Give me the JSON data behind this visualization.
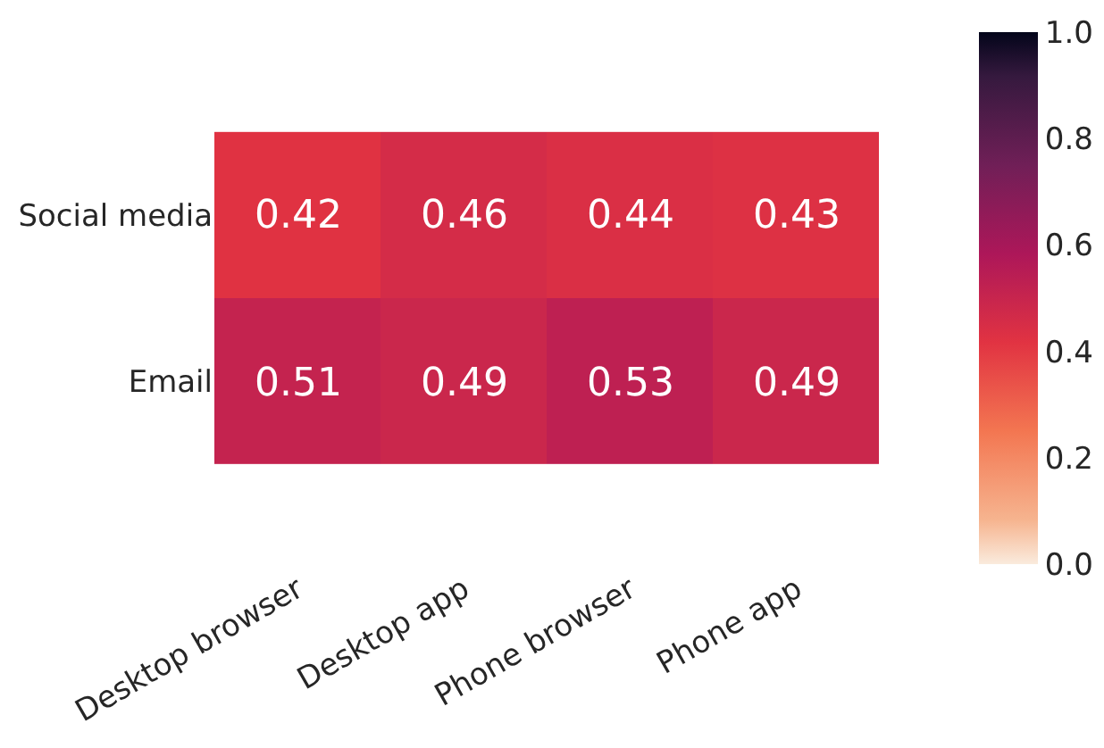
{
  "chart_data": {
    "type": "heatmap",
    "categories": [
      "Desktop browser",
      "Desktop app",
      "Phone browser",
      "Phone app"
    ],
    "y_categories": [
      "Social media",
      "Email"
    ],
    "cells": [
      [
        0.42,
        0.46,
        0.44,
        0.43
      ],
      [
        0.51,
        0.49,
        0.53,
        0.49
      ]
    ],
    "data_labels": true,
    "clim": [
      0.0,
      1.0
    ],
    "cticks": [
      {
        "value": 0.0,
        "label": "0.0"
      },
      {
        "value": 0.2,
        "label": "0.2"
      },
      {
        "value": 0.4,
        "label": "0.4"
      },
      {
        "value": 0.6,
        "label": "0.6"
      },
      {
        "value": 0.8,
        "label": "0.8"
      },
      {
        "value": 1.0,
        "label": "1.0"
      }
    ]
  }
}
